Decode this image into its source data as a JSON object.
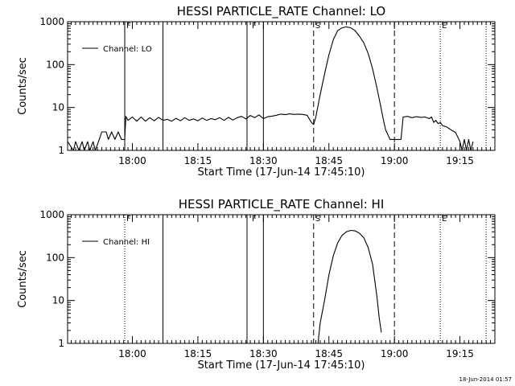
{
  "chart_data": [
    {
      "type": "line",
      "title": "HESSI PARTICLE_RATE Channel: LO",
      "xlabel": "Start Time (17-Jun-14 17:45:10)",
      "ylabel": "Counts/sec",
      "y_scale": "log",
      "ylim": [
        1,
        1000
      ],
      "xlim": [
        "17:45:10",
        "19:23:00"
      ],
      "x_tick_labels": [
        "18:00",
        "18:15",
        "18:30",
        "18:45",
        "19:00",
        "19:15"
      ],
      "y_tick_labels": [
        "1",
        "10",
        "100",
        "1000"
      ],
      "legend": {
        "placement": "top-left",
        "entries": [
          "Channel: LO"
        ]
      },
      "flag_labels": [
        {
          "label": "F",
          "time": "17:58:15"
        },
        {
          "label": "F",
          "time": "18:27:00"
        },
        {
          "label": "S",
          "time": "18:41:30"
        },
        {
          "label": "E",
          "time": "19:10:30"
        }
      ],
      "solid_markers": [
        "17:58:15",
        "18:07:00",
        "18:26:15",
        "18:30:00"
      ],
      "dashed_markers": [
        "18:41:30",
        "19:00:00"
      ],
      "dotted_markers": [
        "17:58:15",
        "19:10:30",
        "19:21:00"
      ],
      "series": [
        {
          "name": "Channel: LO",
          "x": [
            "17:45:10",
            "17:46:30",
            "17:47:00",
            "17:47:45",
            "17:48:30",
            "17:49:00",
            "17:49:45",
            "17:50:15",
            "17:51:00",
            "17:51:30",
            "17:52:15",
            "17:53:00",
            "17:54:00",
            "17:54:30",
            "17:55:15",
            "17:56:00",
            "17:56:45",
            "17:57:30",
            "17:58:15",
            "17:58:30",
            "17:59:00",
            "18:00:00",
            "18:01:00",
            "18:02:00",
            "18:03:00",
            "18:04:00",
            "18:05:00",
            "18:06:00",
            "18:07:00",
            "18:08:00",
            "18:09:00",
            "18:10:00",
            "18:11:00",
            "18:12:00",
            "18:13:00",
            "18:14:00",
            "18:15:00",
            "18:16:00",
            "18:17:00",
            "18:18:00",
            "18:19:00",
            "18:20:00",
            "18:21:00",
            "18:22:00",
            "18:23:00",
            "18:24:00",
            "18:25:00",
            "18:26:00",
            "18:27:00",
            "18:28:00",
            "18:29:00",
            "18:30:00",
            "18:31:00",
            "18:32:00",
            "18:33:00",
            "18:34:00",
            "18:35:00",
            "18:36:00",
            "18:37:00",
            "18:38:00",
            "18:39:00",
            "18:40:00",
            "18:41:00",
            "18:41:30",
            "18:42:00",
            "18:42:30",
            "18:43:00",
            "18:44:00",
            "18:45:00",
            "18:46:00",
            "18:47:00",
            "18:48:00",
            "18:49:00",
            "18:50:00",
            "18:51:00",
            "18:52:00",
            "18:53:00",
            "18:54:00",
            "18:55:00",
            "18:56:00",
            "18:57:00",
            "18:57:30",
            "18:58:00",
            "18:59:00",
            "19:00:00",
            "19:00:30",
            "19:01:00",
            "19:01:30",
            "19:02:00",
            "19:03:00",
            "19:04:00",
            "19:05:00",
            "19:06:00",
            "19:07:00",
            "19:08:00",
            "19:08:30",
            "19:09:00",
            "19:09:30",
            "19:10:00",
            "19:10:30",
            "19:11:00",
            "19:12:00",
            "19:13:00",
            "19:14:00",
            "19:15:00",
            "19:15:30",
            "19:16:00",
            "19:16:30",
            "19:17:00",
            "19:17:30",
            "19:18:00"
          ],
          "values": [
            1.6,
            1.0,
            1.6,
            1.0,
            1.6,
            1.0,
            1.6,
            1.0,
            1.6,
            1.0,
            1.6,
            2.7,
            2.7,
            1.8,
            2.7,
            1.8,
            2.7,
            1.8,
            1.8,
            6.2,
            5.0,
            6.0,
            4.8,
            6.0,
            4.8,
            5.8,
            4.9,
            5.9,
            5.0,
            5.3,
            4.8,
            5.6,
            4.9,
            5.8,
            5.0,
            5.4,
            4.9,
            5.7,
            5.0,
            5.5,
            5.2,
            5.8,
            5.0,
            5.9,
            5.1,
            5.8,
            6.2,
            5.4,
            6.5,
            5.8,
            6.7,
            5.5,
            6.1,
            6.3,
            6.6,
            7.0,
            6.8,
            7.1,
            6.9,
            7.0,
            6.9,
            6.6,
            4.5,
            4.0,
            6.0,
            11,
            20,
            60,
            170,
            380,
            620,
            720,
            760,
            720,
            620,
            460,
            320,
            180,
            80,
            28,
            9,
            5,
            3,
            1.8,
            1.8,
            1.8,
            1.8,
            1.8,
            6.0,
            6.2,
            5.8,
            6.1,
            5.9,
            6.0,
            5.5,
            6.0,
            4.5,
            5.0,
            4.2,
            4.5,
            3.8,
            3.5,
            3.0,
            2.6,
            1.6,
            1.0,
            1.8,
            1.0,
            1.8,
            1.0,
            1.6
          ]
        }
      ]
    },
    {
      "type": "line",
      "title": "HESSI PARTICLE_RATE Channel: HI",
      "xlabel": "Start Time (17-Jun-14 17:45:10)",
      "ylabel": "Counts/sec",
      "y_scale": "log",
      "ylim": [
        1,
        1000
      ],
      "xlim": [
        "17:45:10",
        "19:23:00"
      ],
      "x_tick_labels": [
        "18:00",
        "18:15",
        "18:30",
        "18:45",
        "19:00",
        "19:15"
      ],
      "y_tick_labels": [
        "1",
        "10",
        "100",
        "1000"
      ],
      "legend": {
        "placement": "top-left",
        "entries": [
          "Channel: HI"
        ]
      },
      "flag_labels": [
        {
          "label": "F",
          "time": "17:58:15"
        },
        {
          "label": "F",
          "time": "18:27:00"
        },
        {
          "label": "S",
          "time": "18:41:30"
        },
        {
          "label": "E",
          "time": "19:10:30"
        }
      ],
      "solid_markers": [
        "18:07:00",
        "18:26:15",
        "18:30:00"
      ],
      "dashed_markers": [
        "18:41:30",
        "19:00:00"
      ],
      "dotted_markers": [
        "17:58:15",
        "19:10:30",
        "19:21:00"
      ],
      "series": [
        {
          "name": "Channel: HI",
          "x": [
            "18:42:30",
            "18:43:00",
            "18:44:00",
            "18:45:00",
            "18:46:00",
            "18:47:00",
            "18:48:00",
            "18:49:00",
            "18:50:00",
            "18:51:00",
            "18:52:00",
            "18:53:00",
            "18:54:00",
            "18:55:00",
            "18:56:00",
            "18:56:30",
            "18:57:00"
          ],
          "values": [
            1.0,
            3,
            10,
            40,
            110,
            220,
            330,
            400,
            430,
            420,
            370,
            290,
            170,
            70,
            12,
            4,
            1.8
          ]
        }
      ]
    }
  ],
  "footer": {
    "timestamp": "18-Jun-2014 01:57"
  }
}
